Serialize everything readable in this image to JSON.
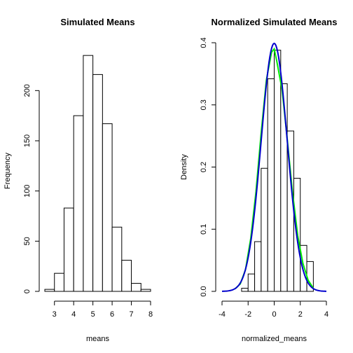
{
  "chart_data": [
    {
      "type": "bar",
      "title": "Simulated Means",
      "xlabel": "means",
      "ylabel": "Frequency",
      "bin_edges": [
        2.5,
        3,
        3.5,
        4,
        4.5,
        5,
        5.5,
        6,
        6.5,
        7,
        7.5,
        8
      ],
      "values": [
        2,
        18,
        83,
        175,
        235,
        216,
        167,
        64,
        31,
        8,
        2
      ],
      "xlim": [
        2.5,
        8
      ],
      "ylim": [
        0,
        240
      ],
      "xticks": [
        "3",
        "4",
        "5",
        "6",
        "7",
        "8"
      ],
      "yticks": [
        "0",
        "50",
        "100",
        "150",
        "200"
      ],
      "grid": false,
      "legend": "none"
    },
    {
      "type": "bar",
      "title": "Normalized Simulated Means",
      "xlabel": "normalized_means",
      "ylabel": "Density",
      "bin_edges": [
        -2.5,
        -2,
        -1.5,
        -1,
        -0.5,
        0,
        0.5,
        1,
        1.5,
        2,
        2.5,
        3
      ],
      "values": [
        0.005,
        0.028,
        0.08,
        0.198,
        0.342,
        0.388,
        0.334,
        0.258,
        0.182,
        0.074,
        0.048
      ],
      "xlim": [
        -4,
        4
      ],
      "ylim": [
        0,
        0.4
      ],
      "xticks": [
        "-4",
        "-2",
        "0",
        "2",
        "4"
      ],
      "yticks": [
        "0.0",
        "0.1",
        "0.2",
        "0.3",
        "0.4"
      ],
      "grid": false,
      "legend": "none",
      "overlays": [
        {
          "type": "line",
          "description": "kernel density estimate",
          "color": "#00ee00",
          "x": [
            -3,
            -2.6,
            -2.2,
            -1.8,
            -1.4,
            -1.0,
            -0.6,
            -0.2,
            0.0,
            0.2,
            0.6,
            1.0,
            1.4,
            1.8,
            2.2,
            2.6,
            3.0
          ],
          "y": [
            0.004,
            0.012,
            0.035,
            0.085,
            0.16,
            0.255,
            0.34,
            0.385,
            0.39,
            0.37,
            0.325,
            0.245,
            0.16,
            0.09,
            0.045,
            0.018,
            0.005
          ]
        },
        {
          "type": "line",
          "description": "standard normal density",
          "color": "#0000cc",
          "function": "normal",
          "mean": 0,
          "sd": 1,
          "x_range": [
            -4,
            4
          ]
        }
      ]
    }
  ]
}
